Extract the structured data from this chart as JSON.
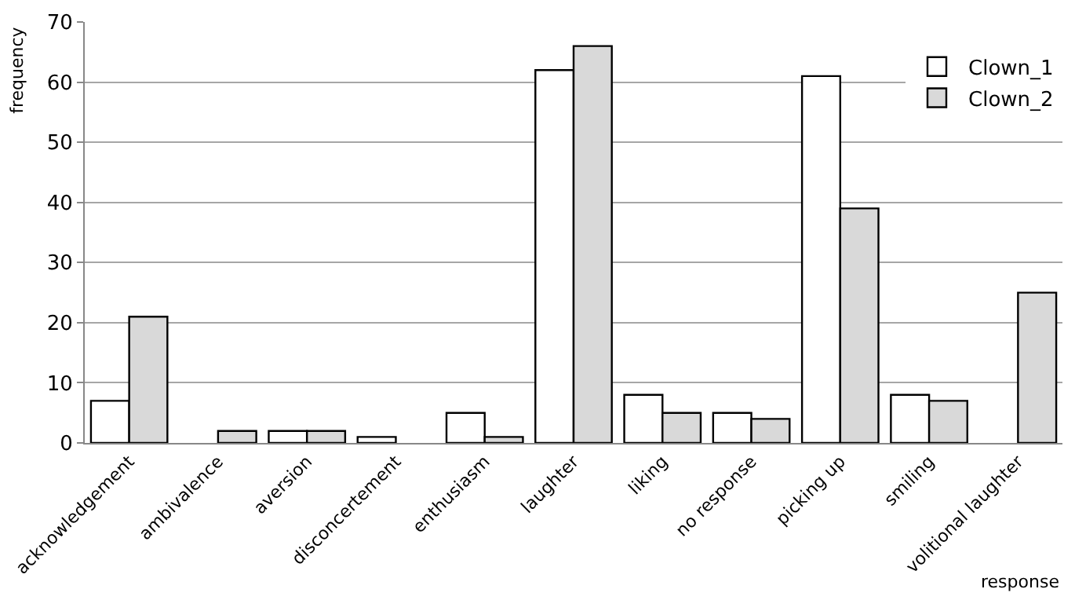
{
  "chart_data": {
    "type": "bar",
    "xlabel": "response",
    "ylabel": "frequency",
    "categories": [
      "acknowledgement",
      "ambivalence",
      "aversion",
      "disconcertement",
      "enthusiasm",
      "laughter",
      "liking",
      "no response",
      "picking up",
      "smiling",
      "volitional laughter"
    ],
    "series": [
      {
        "name": "Clown_1",
        "color": "#ffffff",
        "values": [
          7,
          0,
          2,
          1,
          5,
          62,
          8,
          5,
          61,
          8,
          0
        ]
      },
      {
        "name": "Clown_2",
        "color": "#d9d9d9",
        "values": [
          21,
          2,
          2,
          0,
          1,
          66,
          5,
          4,
          39,
          7,
          25
        ]
      }
    ],
    "ylim": [
      0,
      70
    ],
    "yticks": [
      0,
      10,
      20,
      30,
      40,
      50,
      60,
      70
    ],
    "grid": "y",
    "legend": "top right"
  }
}
